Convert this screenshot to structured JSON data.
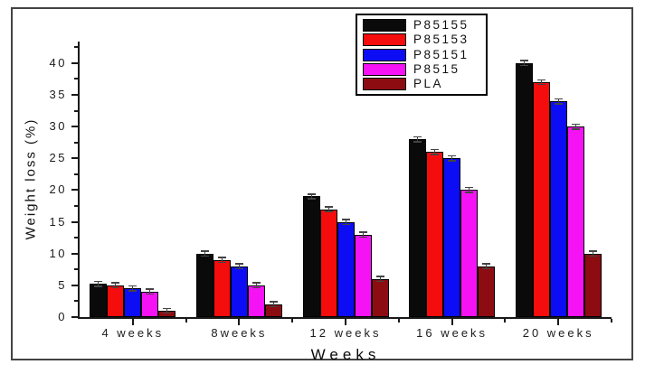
{
  "figure_title": "",
  "chart_data": {
    "type": "bar",
    "title": "",
    "xlabel": "Weeks",
    "ylabel": "Weight loss (%)",
    "categories": [
      "4 weeks",
      "8weeks",
      "12 weeks",
      "16 weeks",
      "20 weeks"
    ],
    "series": [
      {
        "name": "P85155",
        "color": "#0a0a0a",
        "values": [
          5.2,
          10,
          19,
          28,
          40
        ]
      },
      {
        "name": "P85153",
        "color": "#f50c0c",
        "values": [
          5,
          9,
          17,
          26,
          37
        ]
      },
      {
        "name": "P85151",
        "color": "#0d0df5",
        "values": [
          4.5,
          8,
          15,
          25,
          34
        ]
      },
      {
        "name": "P8515",
        "color": "#f513f5",
        "values": [
          4,
          5,
          13,
          20,
          30
        ]
      },
      {
        "name": "PLA",
        "color": "#8d0c11",
        "values": [
          1,
          2,
          6,
          8,
          10
        ]
      }
    ],
    "error_bar": 0.35,
    "ylim": [
      0,
      43.4
    ],
    "yticks_major": [
      0,
      5,
      10,
      15,
      20,
      25,
      30,
      35,
      40
    ],
    "yticks_minor_step": 5,
    "yticks_minor_start": 2.5,
    "legend_position": "top-right",
    "grid": false,
    "axis_color": "#191919",
    "error_bar_color": "#444444"
  }
}
